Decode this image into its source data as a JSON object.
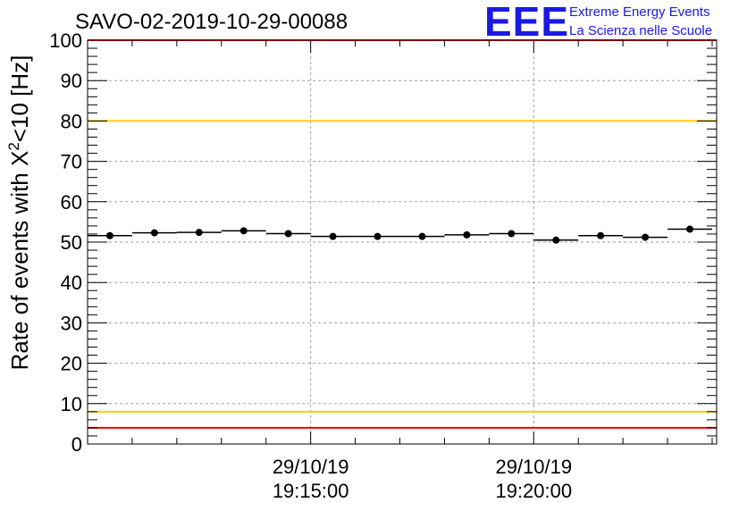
{
  "chart_data": {
    "type": "scatter",
    "title": "SAVO-02-2019-10-29-00088",
    "ylabel": "Rate of events with X²<10 [Hz]",
    "ylabel_parts": {
      "prefix": "Rate of events with X",
      "superscript": "2",
      "suffix": "<10 [Hz]"
    },
    "ylim": [
      0,
      100
    ],
    "y_ticks": [
      "0",
      "10",
      "20",
      "30",
      "40",
      "50",
      "60",
      "70",
      "80",
      "90",
      "100"
    ],
    "x_ticks": [
      {
        "date": "29/10/19",
        "time": "19:15:00"
      },
      {
        "date": "29/10/19",
        "time": "19:20:00"
      }
    ],
    "x_tick_minutes": [
      5,
      10
    ],
    "x_range_minutes": [
      0,
      14.1
    ],
    "bin_width_minutes": 1.0,
    "points_x_minutes": [
      0.5,
      1.5,
      2.5,
      3.5,
      4.5,
      5.5,
      6.5,
      7.5,
      8.5,
      9.5,
      10.5,
      11.5,
      12.5,
      13.5
    ],
    "points_y": [
      51.6,
      52.3,
      52.4,
      52.8,
      52.1,
      51.4,
      51.4,
      51.4,
      51.8,
      52.1,
      50.5,
      51.6,
      51.2,
      53.2
    ],
    "reference_lines": [
      {
        "value": 100,
        "color": "#ff0000"
      },
      {
        "value": 80,
        "color": "#ffcc00"
      },
      {
        "value": 8,
        "color": "#ffcc00"
      },
      {
        "value": 4,
        "color": "#ff0000"
      }
    ],
    "grid": true
  },
  "logo": {
    "mark": "EEE",
    "line1": "Extreme Energy Events",
    "line2": "La Scienza nelle Scuole"
  },
  "colors": {
    "logo": "#1a1ae6",
    "red": "#ff0000",
    "yellow": "#ffcc00",
    "grid": "#a0a0a0"
  }
}
